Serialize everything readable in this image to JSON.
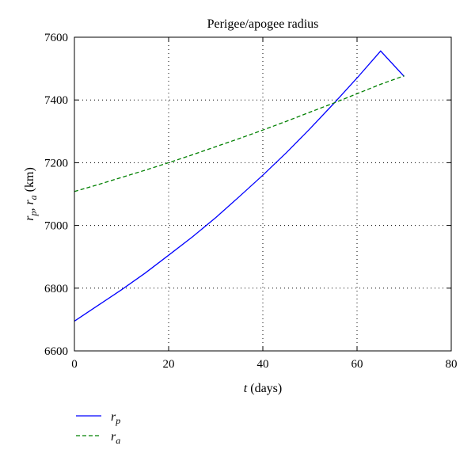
{
  "chart_data": {
    "type": "line",
    "title": "Perigee/apogee radius",
    "xlabel_var": "t",
    "xlabel_unit": " (days)",
    "ylabel": {
      "r1": "r",
      "r1_sub": "p",
      "sep": ", ",
      "r2": "r",
      "r2_sub": "a",
      "unit": " (km)"
    },
    "xlim": [
      0,
      80
    ],
    "ylim": [
      6600,
      7600
    ],
    "xticks": [
      0,
      20,
      40,
      60,
      80
    ],
    "yticks": [
      6600,
      6800,
      7000,
      7200,
      7400,
      7600
    ],
    "grid": true,
    "legend_position": "below",
    "series": [
      {
        "name": "r_p",
        "label_main": "r",
        "label_sub": "p",
        "color": "#0000ff",
        "style": "solid",
        "x": [
          0,
          5,
          10,
          15,
          20,
          25,
          30,
          35,
          40,
          45,
          50,
          55,
          60,
          65,
          70
        ],
        "y": [
          6695,
          6745,
          6795,
          6848,
          6905,
          6963,
          7025,
          7092,
          7160,
          7232,
          7308,
          7388,
          7470,
          7556,
          7475
        ]
      },
      {
        "name": "r_a",
        "label_main": "r",
        "label_sub": "a",
        "color": "#008000",
        "style": "dashed",
        "x": [
          0,
          5,
          10,
          15,
          20,
          25,
          30,
          35,
          40,
          45,
          50,
          55,
          60,
          65,
          70
        ],
        "y": [
          7108,
          7130,
          7153,
          7176,
          7200,
          7225,
          7251,
          7277,
          7304,
          7332,
          7361,
          7390,
          7420,
          7450,
          7477
        ]
      }
    ]
  }
}
